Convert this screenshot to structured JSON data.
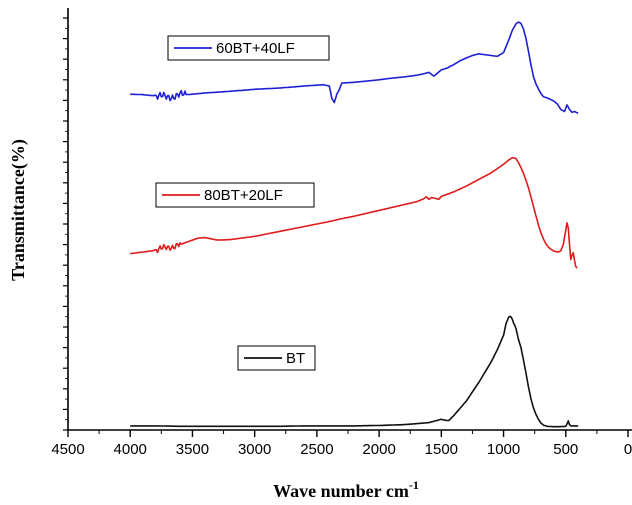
{
  "chart_data": {
    "type": "line",
    "xlabel": "Wave number cm",
    "xlabel_sup": "-1",
    "ylabel": "Transmittance(%)",
    "xlim": [
      4500,
      0
    ],
    "x_reversed": true,
    "x_ticks": [
      4500,
      4000,
      3500,
      3000,
      2500,
      2000,
      1500,
      1000,
      500,
      0
    ],
    "x_tick_labels": [
      "4500",
      "4000",
      "3500",
      "3000",
      "2500",
      "2000",
      "1500",
      "1000",
      "500",
      "0"
    ],
    "y_tick_labels_shown": false,
    "ylim": [
      0,
      100
    ],
    "grid": false,
    "series": [
      {
        "name": "60BT+40LF",
        "color": "#1f1fd6",
        "x": [
          4000,
          3900,
          3800,
          3700,
          3600,
          3500,
          3400,
          3200,
          3000,
          2800,
          2600,
          2450,
          2400,
          2380,
          2360,
          2340,
          2320,
          2300,
          2200,
          2100,
          2000,
          1900,
          1800,
          1750,
          1700,
          1650,
          1600,
          1560,
          1520,
          1500,
          1450,
          1400,
          1350,
          1300,
          1250,
          1200,
          1150,
          1100,
          1050,
          1000,
          960,
          930,
          900,
          880,
          860,
          840,
          820,
          800,
          780,
          760,
          740,
          720,
          700,
          680,
          650,
          620,
          600,
          570,
          540,
          510,
          490,
          470,
          450,
          430,
          410,
          400
        ],
        "y": [
          81.5,
          81.4,
          81.1,
          80.8,
          81.3,
          81.5,
          81.8,
          82.2,
          82.7,
          83.0,
          83.5,
          83.8,
          83.5,
          80.5,
          79.5,
          81.5,
          82.6,
          84.2,
          84.4,
          84.7,
          85.0,
          85.4,
          85.7,
          85.9,
          86.1,
          86.4,
          86.8,
          85.9,
          86.9,
          87.4,
          87.9,
          88.7,
          89.6,
          90.3,
          90.9,
          91.3,
          91.1,
          90.9,
          90.7,
          91.6,
          94.5,
          97.0,
          98.6,
          99.0,
          98.7,
          97.3,
          95.0,
          92.0,
          88.7,
          85.8,
          84.0,
          82.8,
          81.7,
          80.9,
          80.6,
          80.2,
          79.9,
          79.2,
          77.8,
          77.3,
          78.9,
          77.8,
          77.1,
          77.3,
          77.0,
          76.9
        ],
        "noise": [
          [
            3800,
            3550,
            0.7
          ]
        ]
      },
      {
        "name": "80BT+20LF",
        "color": "#e01b1b",
        "x": [
          4000,
          3900,
          3800,
          3700,
          3600,
          3500,
          3450,
          3400,
          3350,
          3300,
          3200,
          3100,
          3000,
          2900,
          2800,
          2700,
          2600,
          2500,
          2400,
          2300,
          2200,
          2100,
          2000,
          1900,
          1800,
          1700,
          1650,
          1620,
          1600,
          1580,
          1560,
          1520,
          1500,
          1400,
          1300,
          1200,
          1100,
          1000,
          960,
          930,
          900,
          880,
          860,
          840,
          820,
          800,
          780,
          760,
          740,
          720,
          700,
          680,
          660,
          640,
          620,
          600,
          580,
          560,
          540,
          520,
          500,
          490,
          480,
          470,
          460,
          450,
          440,
          430,
          420,
          410
        ],
        "y": [
          42.8,
          43.2,
          43.6,
          44.3,
          45.0,
          46.1,
          46.6,
          46.7,
          46.4,
          46.1,
          46.2,
          46.6,
          47.0,
          47.6,
          48.2,
          48.8,
          49.4,
          50.0,
          50.6,
          51.3,
          51.9,
          52.6,
          53.3,
          54.0,
          54.7,
          55.4,
          56.0,
          56.6,
          56.0,
          56.4,
          56.3,
          56.0,
          56.7,
          57.8,
          59.2,
          60.8,
          62.4,
          64.5,
          65.5,
          66.1,
          65.9,
          64.9,
          63.7,
          62.3,
          60.6,
          58.8,
          56.6,
          54.3,
          52.0,
          49.8,
          47.9,
          46.4,
          45.2,
          44.4,
          43.9,
          43.5,
          43.3,
          43.2,
          43.5,
          45.0,
          48.5,
          50.3,
          49.0,
          45.0,
          41.4,
          42.4,
          43.0,
          41.2,
          39.7,
          39.3
        ],
        "noise": [
          [
            3800,
            3600,
            0.6
          ]
        ]
      },
      {
        "name": "BT",
        "color": "#111111",
        "x": [
          4000,
          3800,
          3600,
          3400,
          3200,
          3000,
          2800,
          2600,
          2400,
          2200,
          2000,
          1800,
          1600,
          1500,
          1460,
          1440,
          1400,
          1300,
          1200,
          1100,
          1050,
          1000,
          980,
          960,
          950,
          940,
          930,
          920,
          910,
          900,
          890,
          880,
          860,
          840,
          820,
          800,
          780,
          760,
          740,
          720,
          700,
          680,
          650,
          600,
          550,
          500,
          490,
          480,
          470,
          460,
          450,
          420,
          400
        ],
        "y": [
          1.0,
          1.0,
          0.9,
          0.9,
          0.9,
          0.9,
          0.9,
          1.0,
          1.0,
          1.0,
          1.1,
          1.3,
          1.8,
          2.6,
          2.3,
          2.3,
          3.5,
          7.0,
          11.5,
          16.5,
          19.5,
          23.0,
          25.8,
          27.3,
          27.6,
          27.4,
          26.9,
          26.0,
          25.4,
          24.6,
          23.3,
          22.0,
          20.0,
          17.0,
          13.8,
          10.5,
          7.6,
          5.4,
          3.8,
          2.6,
          1.7,
          1.2,
          0.9,
          0.8,
          0.8,
          0.9,
          1.5,
          2.2,
          1.3,
          1.0,
          1.0,
          1.0,
          1.0
        ]
      }
    ],
    "legends": [
      {
        "text": "60BT+40LF",
        "color": "#1f1fd6"
      },
      {
        "text": "80BT+20LF",
        "color": "#e01b1b"
      },
      {
        "text": "BT",
        "color": "#111111"
      }
    ]
  }
}
